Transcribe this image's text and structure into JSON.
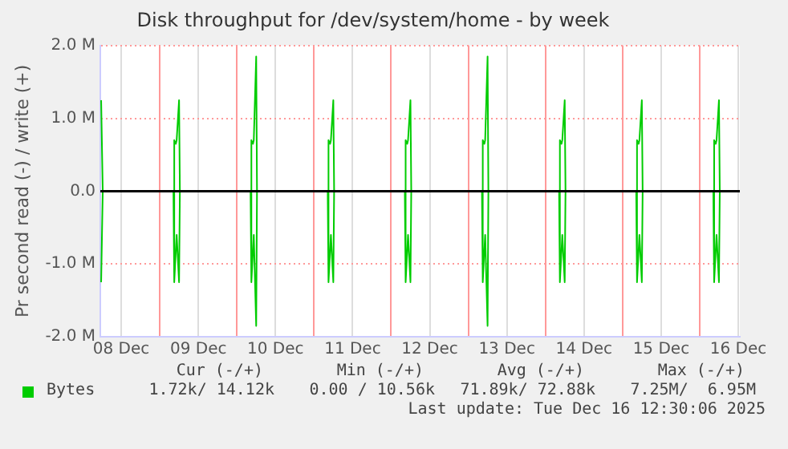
{
  "chart_data": {
    "type": "line",
    "title": "Disk throughput for /dev/system/home - by week",
    "ylabel": "Pr second read (-) / write (+)",
    "xlim": [
      "2025-12-08T05:30",
      "2025-12-16T12:30"
    ],
    "xticks": [
      {
        "value": "2025-12-08T12:00",
        "label": "08 Dec"
      },
      {
        "value": "2025-12-09T00:00",
        "label": null
      },
      {
        "value": "2025-12-09T12:00",
        "label": "09 Dec"
      },
      {
        "value": "2025-12-10T00:00",
        "label": null
      },
      {
        "value": "2025-12-10T12:00",
        "label": "10 Dec"
      },
      {
        "value": "2025-12-11T00:00",
        "label": null
      },
      {
        "value": "2025-12-11T12:00",
        "label": "11 Dec"
      },
      {
        "value": "2025-12-12T00:00",
        "label": null
      },
      {
        "value": "2025-12-12T12:00",
        "label": "12 Dec"
      },
      {
        "value": "2025-12-13T00:00",
        "label": null
      },
      {
        "value": "2025-12-13T12:00",
        "label": "13 Dec"
      },
      {
        "value": "2025-12-14T00:00",
        "label": null
      },
      {
        "value": "2025-12-14T12:00",
        "label": "14 Dec"
      },
      {
        "value": "2025-12-15T00:00",
        "label": null
      },
      {
        "value": "2025-12-15T12:00",
        "label": "15 Dec"
      },
      {
        "value": "2025-12-16T00:00",
        "label": null
      },
      {
        "value": "2025-12-16T12:00",
        "label": "16 Dec"
      }
    ],
    "ylim": [
      -2000000,
      2000000
    ],
    "yticks": [
      {
        "value": -2000000,
        "label": "-2.0 M"
      },
      {
        "value": -1000000,
        "label": "-1.0 M"
      },
      {
        "value": 0,
        "label": "0.0"
      },
      {
        "value": 1000000,
        "label": "1.0 M"
      },
      {
        "value": 2000000,
        "label": "2.0 M"
      }
    ],
    "grid": true,
    "legend": "bottom",
    "line_style": "solid",
    "ref_lines": [
      {
        "axis": "y",
        "value": 0,
        "color": "#000000"
      }
    ],
    "series": [
      {
        "name": "Bytes",
        "color": "#00cc00",
        "x": [
          "2025-12-08T05:45",
          "2025-12-08T06:15",
          "2025-12-09T04:15",
          "2025-12-09T04:30",
          "2025-12-09T05:00",
          "2025-12-09T05:15",
          "2025-12-09T06:00",
          "2025-12-09T06:15",
          "2025-12-10T04:15",
          "2025-12-10T04:30",
          "2025-12-10T05:00",
          "2025-12-10T05:15",
          "2025-12-10T06:00",
          "2025-12-10T06:15",
          "2025-12-11T04:15",
          "2025-12-11T04:30",
          "2025-12-11T05:00",
          "2025-12-11T05:15",
          "2025-12-11T06:00",
          "2025-12-11T06:15",
          "2025-12-12T04:15",
          "2025-12-12T04:30",
          "2025-12-12T05:00",
          "2025-12-12T05:15",
          "2025-12-12T06:00",
          "2025-12-12T06:15",
          "2025-12-13T04:15",
          "2025-12-13T04:30",
          "2025-12-13T05:00",
          "2025-12-13T05:15",
          "2025-12-13T06:00",
          "2025-12-13T06:15",
          "2025-12-14T04:15",
          "2025-12-14T04:30",
          "2025-12-14T05:00",
          "2025-12-14T05:15",
          "2025-12-14T06:00",
          "2025-12-14T06:15",
          "2025-12-15T04:15",
          "2025-12-15T04:30",
          "2025-12-15T05:00",
          "2025-12-15T05:15",
          "2025-12-15T06:00",
          "2025-12-15T06:15",
          "2025-12-16T04:15",
          "2025-12-16T04:30",
          "2025-12-16T05:00",
          "2025-12-16T05:15",
          "2025-12-16T06:00",
          "2025-12-16T06:15",
          "2025-12-16T12:30"
        ],
        "values": [
          1250000,
          0,
          0,
          700000,
          650000,
          700000,
          1250000,
          0,
          0,
          700000,
          650000,
          700000,
          1850000,
          0,
          0,
          700000,
          650000,
          700000,
          1250000,
          0,
          0,
          700000,
          650000,
          700000,
          1250000,
          0,
          0,
          700000,
          650000,
          700000,
          1850000,
          0,
          0,
          700000,
          650000,
          700000,
          1250000,
          0,
          0,
          700000,
          650000,
          700000,
          1250000,
          0,
          0,
          700000,
          650000,
          700000,
          1250000,
          0,
          0
        ]
      },
      {
        "color": "#00cc00",
        "x": [
          "2025-12-08T05:45",
          "2025-12-08T06:15",
          "2025-12-09T04:15",
          "2025-12-09T04:30",
          "2025-12-09T05:15",
          "2025-12-09T06:00",
          "2025-12-09T06:15",
          "2025-12-10T04:15",
          "2025-12-10T04:30",
          "2025-12-10T05:15",
          "2025-12-10T06:00",
          "2025-12-10T06:15",
          "2025-12-11T04:15",
          "2025-12-11T04:30",
          "2025-12-11T05:15",
          "2025-12-11T06:00",
          "2025-12-11T06:15",
          "2025-12-12T04:15",
          "2025-12-12T04:30",
          "2025-12-12T05:15",
          "2025-12-12T06:00",
          "2025-12-12T06:15",
          "2025-12-13T04:15",
          "2025-12-13T04:30",
          "2025-12-13T05:15",
          "2025-12-13T06:00",
          "2025-12-13T06:15",
          "2025-12-14T04:15",
          "2025-12-14T04:30",
          "2025-12-14T05:15",
          "2025-12-14T06:00",
          "2025-12-14T06:15",
          "2025-12-15T04:15",
          "2025-12-15T04:30",
          "2025-12-15T05:15",
          "2025-12-15T06:00",
          "2025-12-15T06:15",
          "2025-12-16T04:15",
          "2025-12-16T04:30",
          "2025-12-16T05:15",
          "2025-12-16T06:00",
          "2025-12-16T06:15",
          "2025-12-16T12:30"
        ],
        "values": [
          -1250000,
          0,
          0,
          -1250000,
          -600000,
          -1250000,
          0,
          0,
          -1250000,
          -600000,
          -1850000,
          0,
          0,
          -1250000,
          -600000,
          -1250000,
          0,
          0,
          -1250000,
          -600000,
          -1250000,
          0,
          0,
          -1250000,
          -600000,
          -1850000,
          0,
          0,
          -1250000,
          -600000,
          -1250000,
          0,
          0,
          -1250000,
          -600000,
          -1250000,
          0,
          0,
          -1250000,
          -600000,
          -1250000,
          0,
          0
        ]
      }
    ],
    "annotations": [
      "Cur (-/+)",
      "Min (-/+)",
      "Avg (-/+)",
      "Max (-/+)",
      "1.72k/ 14.12k",
      "0.00 / 10.56k",
      "71.89k/ 72.88k",
      "7.25M/  6.95M",
      "Last update: Tue Dec 16 12:30:06 2025"
    ]
  }
}
